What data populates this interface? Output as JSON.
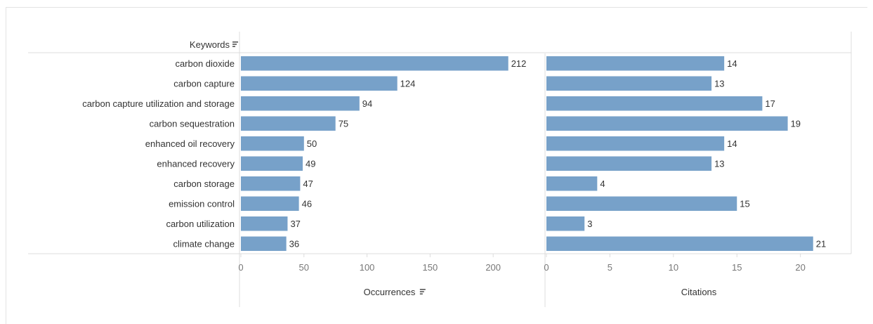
{
  "chart_data": {
    "type": "bar",
    "orientation": "horizontal",
    "row_header": "Keywords",
    "categories": [
      "carbon dioxide",
      "carbon capture",
      "carbon capture utilization and storage",
      "carbon sequestration",
      "enhanced oil recovery",
      "enhanced recovery",
      "carbon storage",
      "emission control",
      "carbon utilization",
      "climate change"
    ],
    "panels": [
      {
        "xlabel": "Occurrences",
        "sorted": true,
        "values": [
          212,
          124,
          94,
          75,
          50,
          49,
          47,
          46,
          37,
          36
        ],
        "xlim": [
          0,
          240
        ],
        "ticks": [
          0,
          50,
          100,
          150,
          200
        ]
      },
      {
        "xlabel": "Citations",
        "sorted": false,
        "values": [
          14,
          13,
          17,
          19,
          14,
          13,
          4,
          15,
          3,
          21
        ],
        "xlim": [
          0,
          24
        ],
        "ticks": [
          0,
          5,
          10,
          15,
          20
        ]
      }
    ],
    "bar_color": "#77a1c9",
    "grid": false
  }
}
